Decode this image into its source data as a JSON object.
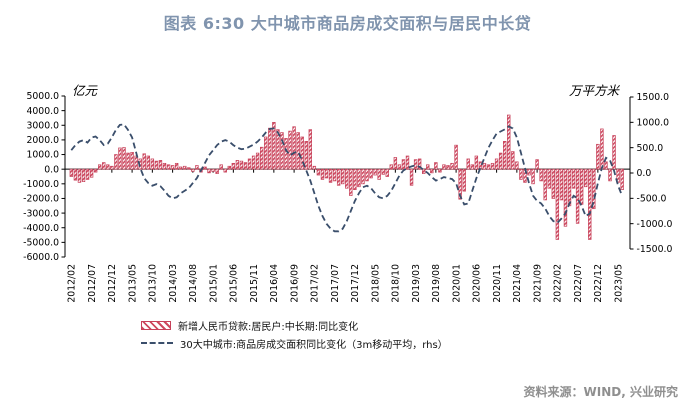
{
  "title": "图表 6:30 大中城市商品房成交面积与居民中长贷",
  "source": "资料来源：WIND, 兴业研究",
  "colors": {
    "title": "#8094ae",
    "bar_edge": "#c7415a",
    "bar_hatch": "#ce4a60",
    "line": "#3a4e6b",
    "axis": "#000000",
    "source_text": "#8f8f8f"
  },
  "chart_data": {
    "type": "bar+line",
    "frequency": "monthly",
    "x_start": "2012/02",
    "x_end": "2023/06",
    "x_tick_step": 5,
    "x_tick_labels": [
      "2012/02",
      "2012/07",
      "2012/12",
      "2013/05",
      "2013/10",
      "2014/03",
      "2014/08",
      "2015/01",
      "2015/06",
      "2015/11",
      "2016/04",
      "2016/09",
      "2017/02",
      "2017/07",
      "2017/12",
      "2018/05",
      "2018/10",
      "2019/03",
      "2019/08",
      "2020/01",
      "2020/06",
      "2020/11",
      "2021/04",
      "2021/09",
      "2022/02",
      "2022/07",
      "2022/12",
      "2023/05"
    ],
    "left_axis": {
      "unit": "亿元",
      "min": -6000,
      "max": 5000,
      "tick_step": 1000
    },
    "right_axis": {
      "unit": "万平方米",
      "min": -1500,
      "max": 1500,
      "tick_step": 500
    },
    "grid": false,
    "legend_position": "bottom-left",
    "series": [
      {
        "name": "新增人民币贷款:居民户:中长期:同比变化",
        "type": "bar",
        "axis": "left",
        "style": "red-diagonal-hatch",
        "values": [
          -500,
          -750,
          -900,
          -850,
          -700,
          -550,
          -200,
          300,
          450,
          300,
          200,
          1000,
          1450,
          1480,
          1100,
          1150,
          900,
          700,
          1050,
          900,
          700,
          550,
          600,
          400,
          300,
          250,
          400,
          150,
          200,
          100,
          -150,
          250,
          -200,
          150,
          -250,
          -150,
          -300,
          300,
          -200,
          200,
          400,
          600,
          550,
          450,
          700,
          900,
          1100,
          1500,
          2200,
          2800,
          3200,
          2700,
          2500,
          2100,
          2600,
          2900,
          2500,
          2200,
          1900,
          2700,
          200,
          -400,
          -700,
          -600,
          -900,
          -800,
          -1100,
          -1000,
          -1300,
          -1800,
          -1400,
          -1200,
          -1000,
          -800,
          -600,
          -400,
          -700,
          -350,
          -500,
          300,
          800,
          300,
          650,
          900,
          -1100,
          650,
          700,
          -300,
          300,
          -250,
          450,
          -200,
          300,
          250,
          400,
          1640,
          -2050,
          -1500,
          700,
          300,
          900,
          500,
          400,
          300,
          400,
          700,
          1100,
          1900,
          3700,
          1200,
          500,
          -700,
          -900,
          -400,
          -1000,
          650,
          -800,
          -2100,
          -1300,
          -2000,
          -4800,
          -2100,
          -3900,
          -2500,
          -1300,
          -3700,
          -2400,
          -1200,
          -4800,
          -2700,
          1700,
          2750,
          500,
          -800,
          2300,
          -900,
          -1400
        ]
      },
      {
        "name": "30大中城市:商品房成交面积同比变化（3m移动平均，rhs）",
        "type": "line",
        "axis": "right",
        "style": "navy-dashed",
        "values": [
          450,
          550,
          620,
          650,
          600,
          700,
          720,
          650,
          550,
          580,
          700,
          850,
          950,
          960,
          850,
          700,
          400,
          100,
          -100,
          -200,
          -250,
          -220,
          -260,
          -350,
          -450,
          -500,
          -480,
          -400,
          -350,
          -300,
          -200,
          -100,
          50,
          200,
          350,
          450,
          550,
          620,
          650,
          620,
          550,
          500,
          470,
          480,
          520,
          560,
          620,
          700,
          800,
          870,
          880,
          800,
          650,
          450,
          350,
          400,
          420,
          250,
          50,
          -150,
          -400,
          -650,
          -850,
          -1000,
          -1100,
          -1150,
          -1150,
          -1100,
          -950,
          -750,
          -550,
          -400,
          -280,
          -250,
          -300,
          -400,
          -480,
          -500,
          -450,
          -350,
          -200,
          -50,
          50,
          100,
          130,
          150,
          120,
          60,
          0,
          -80,
          -150,
          -120,
          -80,
          -100,
          -120,
          -200,
          -450,
          -620,
          -600,
          -350,
          -100,
          100,
          300,
          500,
          650,
          780,
          820,
          860,
          920,
          880,
          700,
          400,
          100,
          -200,
          -450,
          -550,
          -600,
          -700,
          -850,
          -950,
          -980,
          -900,
          -800,
          -600,
          -450,
          -500,
          -650,
          -850,
          -800,
          -550,
          -200,
          100,
          300,
          250,
          50,
          -250,
          -450
        ]
      }
    ]
  }
}
